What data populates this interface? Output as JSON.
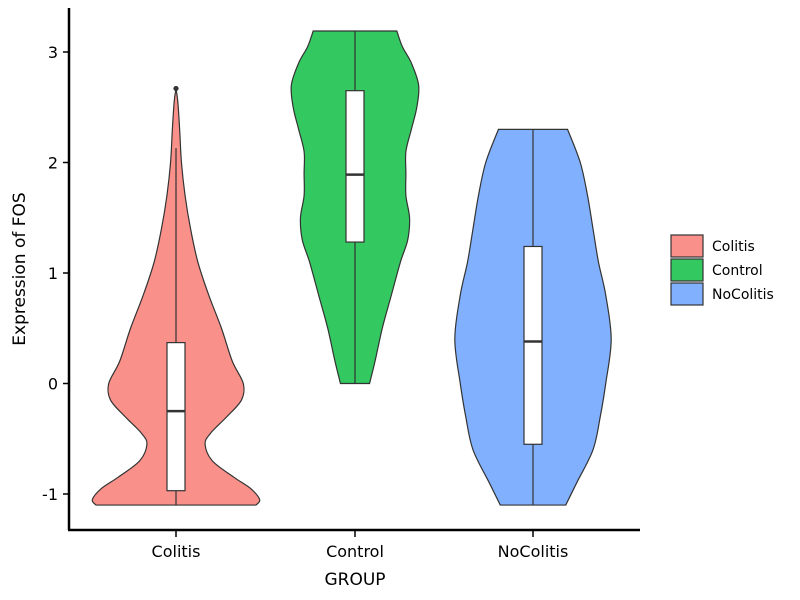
{
  "chart_data": {
    "type": "violin",
    "title": "",
    "xlabel": "GROUP",
    "ylabel": "Expression of FOS",
    "categories": [
      "Colitis",
      "Control",
      "NoColitis"
    ],
    "ylim": [
      -1.3,
      3.4
    ],
    "yticks": [
      {
        "value": -1,
        "label": "-1"
      },
      {
        "value": 0,
        "label": "0"
      },
      {
        "value": 1,
        "label": "1"
      },
      {
        "value": 2,
        "label": "2"
      },
      {
        "value": 3,
        "label": "3"
      }
    ],
    "legend": {
      "position": "right",
      "items": [
        {
          "label": "Colitis",
          "color": "#F8766D"
        },
        {
          "label": "Control",
          "color": "#00BA38"
        },
        {
          "label": "NoColitis",
          "color": "#619CFF"
        }
      ]
    },
    "groups": [
      {
        "name": "Colitis",
        "color": "#F8766D",
        "box": {
          "min": -1.1,
          "q1": -0.97,
          "median": -0.25,
          "q3": 0.37,
          "whisker_high": 2.13
        },
        "outliers": [
          2.67
        ],
        "density": [
          [
            -1.1,
            0.44
          ],
          [
            -1.05,
            0.46
          ],
          [
            -0.95,
            0.41
          ],
          [
            -0.85,
            0.32
          ],
          [
            -0.7,
            0.2
          ],
          [
            -0.55,
            0.16
          ],
          [
            -0.45,
            0.19
          ],
          [
            -0.3,
            0.28
          ],
          [
            -0.15,
            0.36
          ],
          [
            0.0,
            0.37
          ],
          [
            0.2,
            0.31
          ],
          [
            0.5,
            0.25
          ],
          [
            0.8,
            0.18
          ],
          [
            1.1,
            0.12
          ],
          [
            1.4,
            0.08
          ],
          [
            1.7,
            0.05
          ],
          [
            2.0,
            0.03
          ],
          [
            2.3,
            0.02
          ],
          [
            2.55,
            0.01
          ],
          [
            2.67,
            0.0
          ]
        ]
      },
      {
        "name": "Control",
        "color": "#00BA38",
        "box": {
          "min": 0.0,
          "q1": 1.28,
          "median": 1.89,
          "q3": 2.65,
          "whisker_high": 3.19
        },
        "outliers": [],
        "density": [
          [
            0.0,
            0.08
          ],
          [
            0.2,
            0.11
          ],
          [
            0.5,
            0.15
          ],
          [
            0.8,
            0.2
          ],
          [
            1.1,
            0.25
          ],
          [
            1.3,
            0.29
          ],
          [
            1.5,
            0.3
          ],
          [
            1.7,
            0.28
          ],
          [
            1.9,
            0.28
          ],
          [
            2.1,
            0.28
          ],
          [
            2.3,
            0.31
          ],
          [
            2.5,
            0.34
          ],
          [
            2.7,
            0.35
          ],
          [
            2.9,
            0.31
          ],
          [
            3.05,
            0.26
          ],
          [
            3.19,
            0.23
          ]
        ]
      },
      {
        "name": "NoColitis",
        "color": "#619CFF",
        "box": {
          "min": -1.1,
          "q1": -0.55,
          "median": 0.38,
          "q3": 1.24,
          "whisker_high": 2.3
        },
        "outliers": [],
        "density": [
          [
            -1.1,
            0.18
          ],
          [
            -0.9,
            0.24
          ],
          [
            -0.6,
            0.33
          ],
          [
            -0.3,
            0.37
          ],
          [
            0.0,
            0.4
          ],
          [
            0.4,
            0.43
          ],
          [
            0.8,
            0.4
          ],
          [
            1.1,
            0.36
          ],
          [
            1.4,
            0.33
          ],
          [
            1.7,
            0.3
          ],
          [
            2.0,
            0.26
          ],
          [
            2.3,
            0.19
          ]
        ]
      }
    ]
  }
}
